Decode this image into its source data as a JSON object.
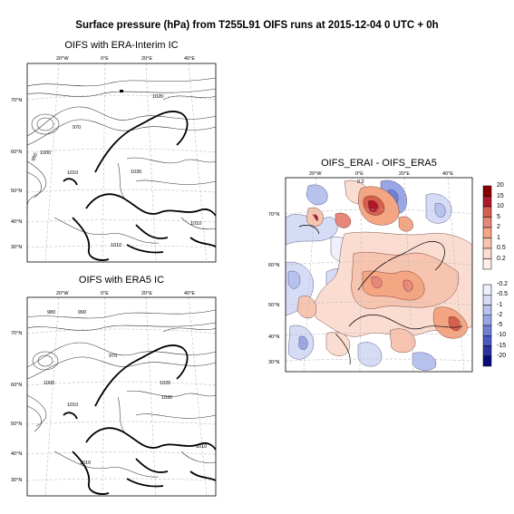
{
  "figure": {
    "title": "Surface pressure (hPa) from T255L91 OIFS runs at 2015-12-04 0 UTC + 0h"
  },
  "panels": [
    {
      "id": "top",
      "title": "OIFS with ERA-Interim IC",
      "lon_ticks": [
        "20°W",
        "0°E",
        "20°E",
        "40°E"
      ],
      "lat_ticks": [
        "70°N",
        "60°N",
        "50°N",
        "40°N",
        "30°N"
      ],
      "contour_labels": [
        "970",
        "990",
        "1000",
        "1010",
        "1030",
        "1020",
        "1010",
        "1010"
      ]
    },
    {
      "id": "bottom",
      "title": "OIFS with ERA5 IC",
      "lon_ticks": [
        "20°W",
        "0°E",
        "20°E",
        "40°E"
      ],
      "lat_ticks": [
        "70°N",
        "60°N",
        "50°N",
        "40°N",
        "30°N"
      ],
      "contour_labels": [
        "980",
        "990",
        "970",
        "1000",
        "1010",
        "1020",
        "1030",
        "1010",
        "1010"
      ]
    },
    {
      "id": "diff",
      "title": "OIFS_ERAI - OIFS_ERA5",
      "lon_ticks": [
        "20°W",
        "0°E",
        "20°E",
        "40°E"
      ],
      "lat_ticks": [
        "70°N",
        "60°N",
        "50°N",
        "40°N",
        "30°N"
      ],
      "contour_labels": [
        "0.2"
      ]
    }
  ],
  "colorbar": {
    "positive": [
      "20",
      "15",
      "10",
      "5",
      "2",
      "1",
      "0.5",
      "0.2"
    ],
    "negative": [
      "-0.2",
      "-0.5",
      "-1",
      "-2",
      "-5",
      "-10",
      "-15",
      "-20"
    ],
    "positive_colors": [
      "#8b0000",
      "#b2182b",
      "#d6604d",
      "#e7877a",
      "#f4a582",
      "#f7c4b0",
      "#fbdcd0",
      "#fdeeea"
    ],
    "negative_colors": [
      "#eef0fb",
      "#d6dcf5",
      "#b8c2ee",
      "#98a6e4",
      "#7080d4",
      "#4a5ac0",
      "#2a33a0",
      "#0a0a78"
    ]
  }
}
